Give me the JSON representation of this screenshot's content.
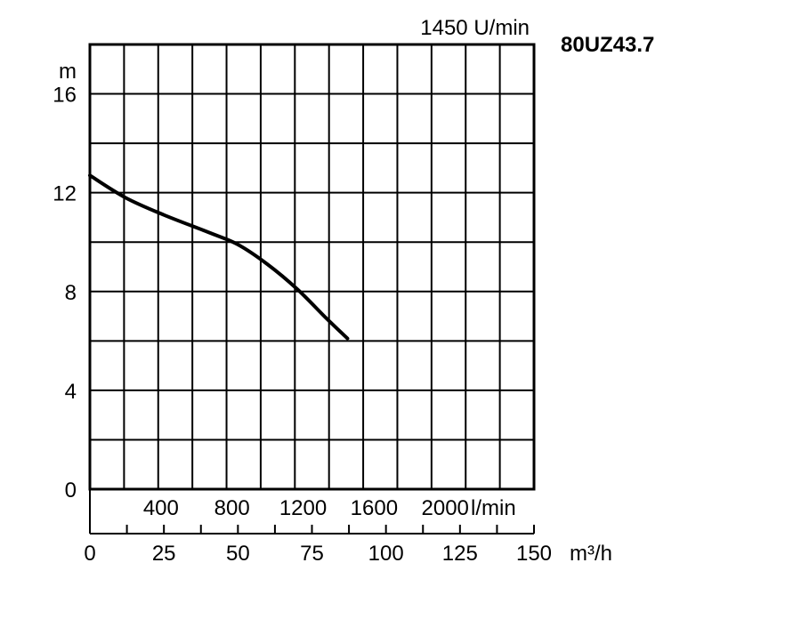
{
  "chart_data": {
    "type": "line",
    "title": "1450 U/min",
    "model": "80UZ43.7",
    "ylabel": "m",
    "x_axis_secondary_unit": "l/min",
    "x_axis_unit": "m³/h",
    "yticks": [
      "0",
      "4",
      "8",
      "12",
      "16"
    ],
    "ylim": [
      0,
      18
    ],
    "xlim": [
      0,
      150
    ],
    "x_lpm_ticks": [
      "400",
      "800",
      "1200",
      "1600",
      "2000"
    ],
    "x_m3h_ticks": [
      "0",
      "25",
      "50",
      "75",
      "100",
      "125",
      "150"
    ],
    "grid": true,
    "series": [
      {
        "x": [
          0,
          12,
          25,
          40,
          50,
          60,
          70,
          80,
          87
        ],
        "y": [
          12.7,
          11.8,
          11.1,
          10.4,
          9.9,
          9.1,
          8.1,
          6.9,
          6.1
        ]
      }
    ]
  }
}
